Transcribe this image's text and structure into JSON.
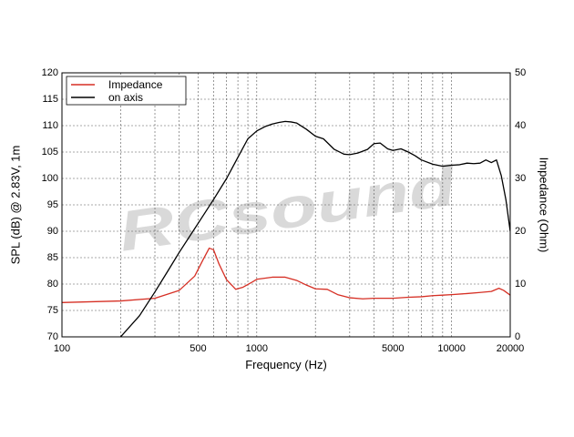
{
  "watermark": {
    "text": "RCsound",
    "color": "#d9d9d9"
  },
  "chart_data": {
    "type": "line",
    "xlabel": "Frequency (Hz)",
    "ylabel": "SPL (dB) @ 2.83V, 1m",
    "y2label": "Impedance (Ohm)",
    "x_scale": "log",
    "xlim": [
      100,
      20000
    ],
    "ylim": [
      70,
      120
    ],
    "y2lim": [
      0,
      50
    ],
    "grid": true,
    "legend_position": "top-left",
    "x_ticks": [
      100,
      500,
      1000,
      5000,
      10000,
      20000
    ],
    "x_tick_labels": [
      "100",
      "500",
      "1000",
      "5000",
      "10000",
      "20000"
    ],
    "y_ticks": [
      70,
      75,
      80,
      85,
      90,
      95,
      100,
      105,
      110,
      115,
      120
    ],
    "y_tick_labels": [
      "70",
      "75",
      "80",
      "85",
      "90",
      "95",
      "100",
      "105",
      "110",
      "115",
      "120"
    ],
    "y2_ticks": [
      0,
      10,
      20,
      30,
      40,
      50
    ],
    "y2_tick_labels": [
      "0",
      "10",
      "20",
      "30",
      "40",
      "50"
    ],
    "series": [
      {
        "name": "Impedance",
        "axis": "right",
        "color": "#d62f24",
        "x": [
          100,
          200,
          300,
          400,
          480,
          530,
          570,
          600,
          640,
          700,
          780,
          850,
          950,
          1000,
          1200,
          1400,
          1600,
          1800,
          2000,
          2300,
          2600,
          3000,
          3500,
          4000,
          5000,
          6000,
          7000,
          8000,
          9000,
          10000,
          12000,
          14000,
          16000,
          17500,
          18500,
          20000
        ],
        "y": [
          6.5,
          6.8,
          7.3,
          8.8,
          11.5,
          14.6,
          16.8,
          16.5,
          13.8,
          10.8,
          9.0,
          9.4,
          10.4,
          10.9,
          11.3,
          11.3,
          10.7,
          9.8,
          9.1,
          9.0,
          8.0,
          7.4,
          7.2,
          7.3,
          7.3,
          7.5,
          7.6,
          7.8,
          7.9,
          8.0,
          8.2,
          8.4,
          8.6,
          9.2,
          8.8,
          7.9
        ]
      },
      {
        "name": "on axis",
        "axis": "left",
        "color": "#000000",
        "x": [
          200,
          250,
          300,
          350,
          400,
          500,
          600,
          700,
          800,
          900,
          1000,
          1100,
          1200,
          1300,
          1400,
          1500,
          1600,
          1800,
          2000,
          2200,
          2500,
          2800,
          3000,
          3300,
          3700,
          4000,
          4300,
          4700,
          5000,
          5500,
          6000,
          6500,
          7000,
          8000,
          9000,
          10000,
          11000,
          12000,
          13000,
          14000,
          15000,
          16000,
          17000,
          18000,
          19000,
          20000
        ],
        "y": [
          70.0,
          74.0,
          78.5,
          82.5,
          86.0,
          91.5,
          96.0,
          100.0,
          104.0,
          107.5,
          109.0,
          109.8,
          110.3,
          110.6,
          110.8,
          110.7,
          110.5,
          109.3,
          108.0,
          107.5,
          105.5,
          104.6,
          104.5,
          104.8,
          105.5,
          106.6,
          106.7,
          105.6,
          105.3,
          105.6,
          105.0,
          104.3,
          103.5,
          102.7,
          102.3,
          102.5,
          102.6,
          102.9,
          102.8,
          102.9,
          103.5,
          103.0,
          103.5,
          100.5,
          96.0,
          90.0
        ]
      }
    ]
  }
}
